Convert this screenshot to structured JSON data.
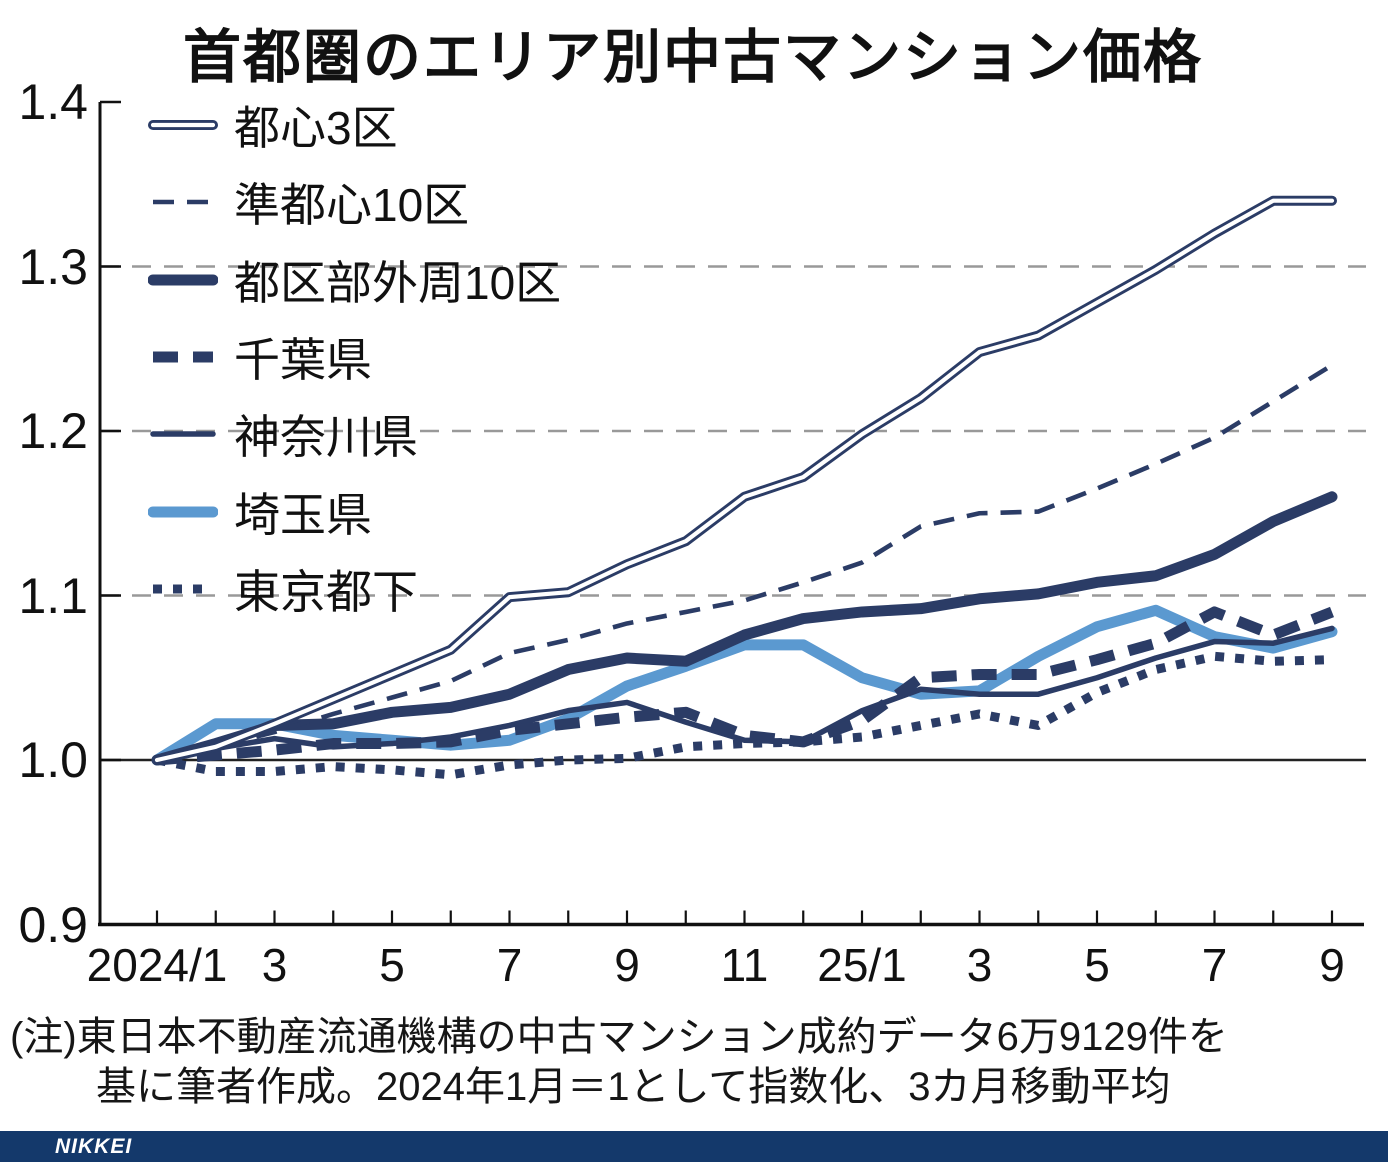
{
  "title": "首都圏のエリア別中古マンション価格",
  "note": {
    "line1": "(注)東日本不動産流通機構の中古マンション成約データ6万9129件を",
    "line2": "基に筆者作成。2024年1月＝1として指数化、3カ月移動平均"
  },
  "branding": {
    "logo": "NIKKEI"
  },
  "colors": {
    "navy": "#2b3c66",
    "light_blue": "#5b99d0",
    "grid": "#999999",
    "axis": "#111111",
    "baseline": "#222222",
    "footer_bar": "#14396b",
    "white": "#ffffff"
  },
  "chart_data": {
    "type": "line",
    "title": "首都圏のエリア別中古マンション価格",
    "x_categories": [
      "2024/1",
      "2",
      "3",
      "4",
      "5",
      "6",
      "7",
      "8",
      "9",
      "10",
      "11",
      "12",
      "25/1",
      "2",
      "3",
      "4",
      "5",
      "6",
      "7",
      "8",
      "9"
    ],
    "x_tick_labels": [
      {
        "label": "2024/1",
        "index": 0
      },
      {
        "label": "3",
        "index": 2
      },
      {
        "label": "5",
        "index": 4
      },
      {
        "label": "7",
        "index": 6
      },
      {
        "label": "9",
        "index": 8
      },
      {
        "label": "11",
        "index": 10
      },
      {
        "label": "25/1",
        "index": 12
      },
      {
        "label": "3",
        "index": 14
      },
      {
        "label": "5",
        "index": 16
      },
      {
        "label": "7",
        "index": 18
      },
      {
        "label": "9",
        "index": 20
      }
    ],
    "y_ticks": [
      {
        "label": "0.9",
        "value": 0.9
      },
      {
        "label": "1.0",
        "value": 1.0
      },
      {
        "label": "1.1",
        "value": 1.1
      },
      {
        "label": "1.2",
        "value": 1.2
      },
      {
        "label": "1.3",
        "value": 1.3
      },
      {
        "label": "1.4",
        "value": 1.4
      }
    ],
    "ylim": [
      0.9,
      1.4
    ],
    "grid_dashed_at": [
      1.1,
      1.2,
      1.3
    ],
    "solid_line_at": 1.0,
    "legend_position": "top-left",
    "series": [
      {
        "name": "都心3区",
        "style": "double",
        "color": "navy",
        "values": [
          1.0,
          1.008,
          1.022,
          1.037,
          1.052,
          1.067,
          1.099,
          1.102,
          1.119,
          1.133,
          1.16,
          1.172,
          1.198,
          1.22,
          1.248,
          1.258,
          1.278,
          1.298,
          1.32,
          1.34,
          1.34
        ]
      },
      {
        "name": "準都心10区",
        "style": "thin-dashed",
        "color": "navy",
        "values": [
          1.0,
          1.008,
          1.017,
          1.028,
          1.038,
          1.048,
          1.065,
          1.073,
          1.083,
          1.09,
          1.097,
          1.108,
          1.12,
          1.142,
          1.15,
          1.151,
          1.165,
          1.18,
          1.196,
          1.218,
          1.24
        ]
      },
      {
        "name": "都区部外周10区",
        "style": "thick-solid",
        "color": "navy",
        "values": [
          1.0,
          1.01,
          1.021,
          1.022,
          1.029,
          1.032,
          1.04,
          1.055,
          1.062,
          1.06,
          1.076,
          1.086,
          1.09,
          1.092,
          1.098,
          1.101,
          1.108,
          1.112,
          1.125,
          1.145,
          1.16
        ]
      },
      {
        "name": "千葉県",
        "style": "thick-dashed",
        "color": "navy",
        "values": [
          1.0,
          1.003,
          1.006,
          1.01,
          1.01,
          1.011,
          1.018,
          1.022,
          1.026,
          1.029,
          1.015,
          1.011,
          1.024,
          1.05,
          1.052,
          1.052,
          1.061,
          1.071,
          1.09,
          1.076,
          1.09
        ]
      },
      {
        "name": "神奈川県",
        "style": "thin-solid",
        "color": "navy",
        "values": [
          1.0,
          1.007,
          1.013,
          1.008,
          1.01,
          1.014,
          1.021,
          1.03,
          1.035,
          1.023,
          1.012,
          1.011,
          1.03,
          1.043,
          1.04,
          1.04,
          1.05,
          1.062,
          1.072,
          1.071,
          1.08
        ]
      },
      {
        "name": "埼玉県",
        "style": "thick-solid",
        "color": "light_blue",
        "values": [
          1.0,
          1.022,
          1.022,
          1.015,
          1.012,
          1.009,
          1.012,
          1.025,
          1.045,
          1.057,
          1.07,
          1.07,
          1.05,
          1.04,
          1.042,
          1.063,
          1.081,
          1.091,
          1.075,
          1.068,
          1.078
        ]
      },
      {
        "name": "東京都下",
        "style": "dotted",
        "color": "navy",
        "values": [
          1.0,
          0.993,
          0.993,
          0.996,
          0.994,
          0.991,
          0.997,
          1.0,
          1.001,
          1.008,
          1.01,
          1.011,
          1.014,
          1.021,
          1.028,
          1.021,
          1.041,
          1.055,
          1.063,
          1.06,
          1.061
        ]
      }
    ]
  }
}
